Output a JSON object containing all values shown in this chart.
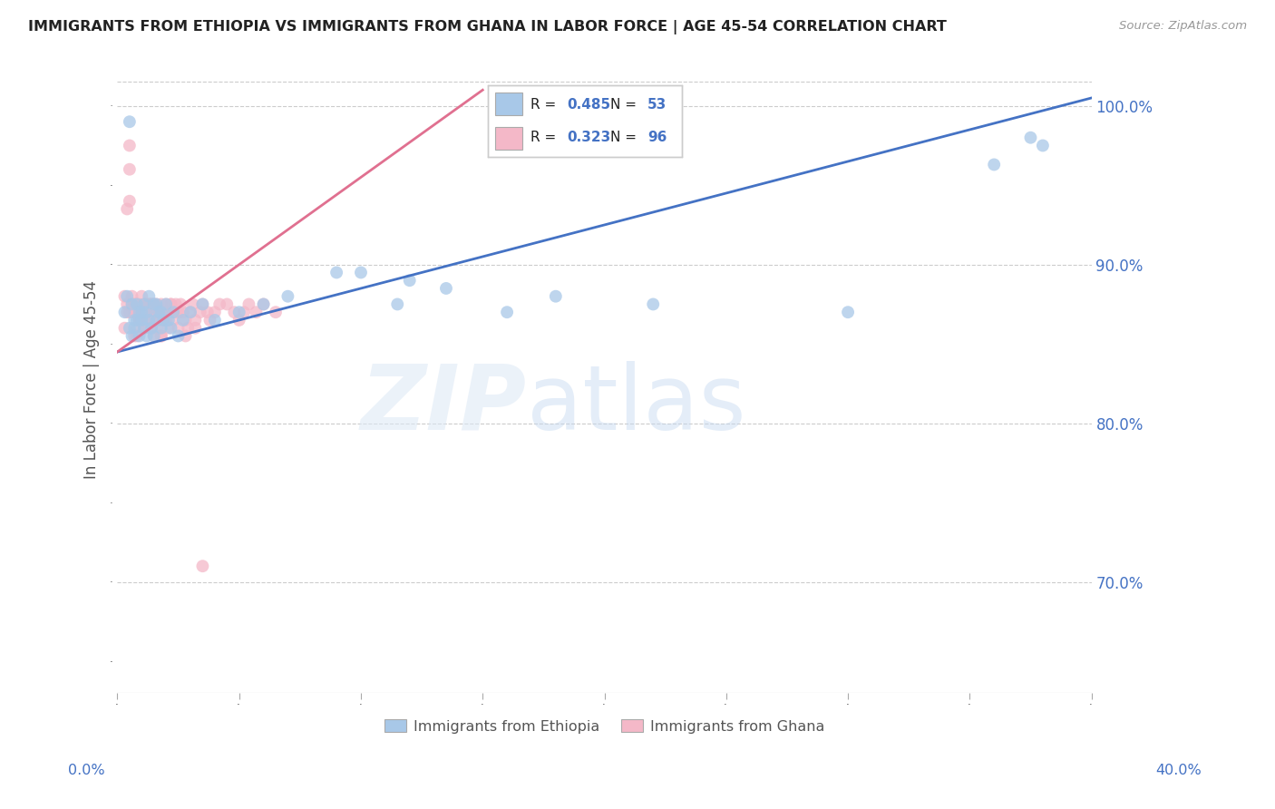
{
  "title": "IMMIGRANTS FROM ETHIOPIA VS IMMIGRANTS FROM GHANA IN LABOR FORCE | AGE 45-54 CORRELATION CHART",
  "source": "Source: ZipAtlas.com",
  "ylabel": "In Labor Force | Age 45-54",
  "legend_ethiopia": "Immigrants from Ethiopia",
  "legend_ghana": "Immigrants from Ghana",
  "R_ethiopia": 0.485,
  "N_ethiopia": 53,
  "R_ghana": 0.323,
  "N_ghana": 96,
  "color_ethiopia": "#a8c8e8",
  "color_ghana": "#f4b8c8",
  "color_ethiopia_line": "#4472c4",
  "color_ghana_line": "#e07090",
  "color_axis_labels": "#4472c4",
  "color_right_axis": "#4472c4",
  "xmin": 0.0,
  "xmax": 0.4,
  "ymin": 0.63,
  "ymax": 1.025,
  "ytick_vals": [
    0.7,
    0.8,
    0.9,
    1.0
  ],
  "ethiopia_trend_x": [
    0.0,
    0.4
  ],
  "ethiopia_trend_y": [
    0.845,
    1.005
  ],
  "ghana_trend_x": [
    0.0,
    0.15
  ],
  "ghana_trend_y": [
    0.845,
    1.01
  ],
  "ethiopia_x": [
    0.003,
    0.004,
    0.005,
    0.006,
    0.006,
    0.007,
    0.007,
    0.008,
    0.008,
    0.009,
    0.009,
    0.01,
    0.01,
    0.011,
    0.011,
    0.012,
    0.012,
    0.013,
    0.013,
    0.014,
    0.015,
    0.015,
    0.016,
    0.016,
    0.017,
    0.018,
    0.018,
    0.019,
    0.02,
    0.021,
    0.022,
    0.023,
    0.025,
    0.027,
    0.03,
    0.035,
    0.04,
    0.05,
    0.06,
    0.07,
    0.09,
    0.1,
    0.115,
    0.12,
    0.135,
    0.16,
    0.18,
    0.22,
    0.3,
    0.36,
    0.375,
    0.38,
    0.005
  ],
  "ethiopia_y": [
    0.87,
    0.88,
    0.86,
    0.875,
    0.855,
    0.865,
    0.86,
    0.875,
    0.865,
    0.87,
    0.855,
    0.865,
    0.87,
    0.86,
    0.875,
    0.87,
    0.855,
    0.865,
    0.88,
    0.86,
    0.875,
    0.855,
    0.865,
    0.875,
    0.87,
    0.86,
    0.87,
    0.865,
    0.875,
    0.865,
    0.86,
    0.87,
    0.855,
    0.865,
    0.87,
    0.875,
    0.865,
    0.87,
    0.875,
    0.88,
    0.895,
    0.895,
    0.875,
    0.89,
    0.885,
    0.87,
    0.88,
    0.875,
    0.87,
    0.963,
    0.98,
    0.975,
    0.99
  ],
  "ghana_x": [
    0.003,
    0.004,
    0.004,
    0.005,
    0.005,
    0.005,
    0.006,
    0.006,
    0.007,
    0.007,
    0.007,
    0.008,
    0.008,
    0.008,
    0.009,
    0.009,
    0.009,
    0.01,
    0.01,
    0.01,
    0.011,
    0.011,
    0.011,
    0.012,
    0.012,
    0.012,
    0.013,
    0.013,
    0.013,
    0.014,
    0.014,
    0.015,
    0.015,
    0.015,
    0.016,
    0.016,
    0.016,
    0.017,
    0.017,
    0.018,
    0.018,
    0.018,
    0.019,
    0.019,
    0.02,
    0.02,
    0.021,
    0.022,
    0.022,
    0.023,
    0.023,
    0.024,
    0.025,
    0.025,
    0.026,
    0.027,
    0.028,
    0.029,
    0.03,
    0.031,
    0.032,
    0.034,
    0.035,
    0.037,
    0.038,
    0.04,
    0.042,
    0.045,
    0.048,
    0.05,
    0.052,
    0.054,
    0.057,
    0.06,
    0.065,
    0.003,
    0.004,
    0.006,
    0.008,
    0.01,
    0.012,
    0.014,
    0.016,
    0.018,
    0.02,
    0.022,
    0.025,
    0.028,
    0.032,
    0.005,
    0.007,
    0.009,
    0.011,
    0.013,
    0.02,
    0.035
  ],
  "ghana_y": [
    0.88,
    0.87,
    0.935,
    0.975,
    0.96,
    0.94,
    0.88,
    0.875,
    0.87,
    0.875,
    0.855,
    0.87,
    0.875,
    0.86,
    0.87,
    0.865,
    0.875,
    0.87,
    0.865,
    0.88,
    0.87,
    0.875,
    0.86,
    0.875,
    0.865,
    0.87,
    0.875,
    0.87,
    0.865,
    0.875,
    0.86,
    0.875,
    0.87,
    0.855,
    0.87,
    0.865,
    0.875,
    0.87,
    0.865,
    0.875,
    0.87,
    0.855,
    0.87,
    0.865,
    0.875,
    0.87,
    0.86,
    0.87,
    0.875,
    0.865,
    0.87,
    0.875,
    0.86,
    0.87,
    0.875,
    0.87,
    0.865,
    0.86,
    0.87,
    0.875,
    0.865,
    0.87,
    0.875,
    0.87,
    0.865,
    0.87,
    0.875,
    0.875,
    0.87,
    0.865,
    0.87,
    0.875,
    0.87,
    0.875,
    0.87,
    0.86,
    0.875,
    0.87,
    0.855,
    0.865,
    0.87,
    0.875,
    0.86,
    0.855,
    0.865,
    0.875,
    0.87,
    0.855,
    0.86,
    0.87,
    0.875,
    0.865,
    0.86,
    0.875,
    0.87,
    0.71
  ]
}
